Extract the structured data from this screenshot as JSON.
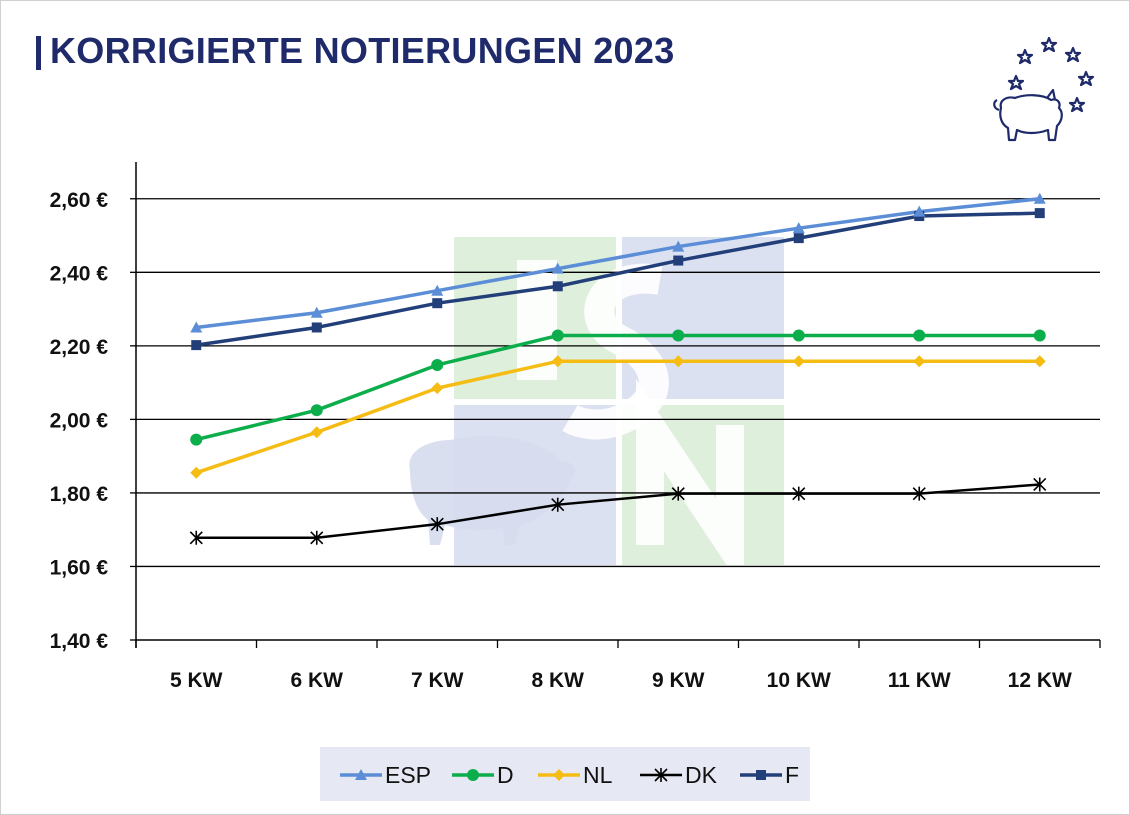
{
  "title": "KORRIGIERTE NOTIERUNGEN 2023",
  "colors": {
    "title": "#1f2a6b",
    "grid": "#000000",
    "watermark_green": "#d8ecd6",
    "watermark_blue": "#d6dcee"
  },
  "logo": {
    "icon": "pig-with-stars-icon"
  },
  "watermark": {
    "icon": "isn-pig-logo-watermark",
    "letters": [
      "I",
      "S",
      "N"
    ]
  },
  "chart_data": {
    "type": "line",
    "categories": [
      "5 KW",
      "6 KW",
      "7 KW",
      "8 KW",
      "9 KW",
      "10 KW",
      "11 KW",
      "12 KW"
    ],
    "yticks": [
      "1,40 €",
      "1,60 €",
      "1,80 €",
      "2,00 €",
      "2,20 €",
      "2,40 €",
      "2,60 €"
    ],
    "ylim": [
      1.4,
      2.7
    ],
    "yticks_values": [
      1.4,
      1.6,
      1.8,
      2.0,
      2.2,
      2.4,
      2.6
    ],
    "grid": true,
    "legend_position": "bottom",
    "series": [
      {
        "name": "ESP",
        "color": "#5b8ed6",
        "marker": "triangle",
        "values": [
          2.25,
          2.29,
          2.35,
          2.41,
          2.47,
          2.52,
          2.565,
          2.6
        ]
      },
      {
        "name": "D",
        "color": "#0cad4b",
        "marker": "circle",
        "values": [
          1.945,
          2.025,
          2.148,
          2.228,
          2.228,
          2.228,
          2.228,
          2.228
        ]
      },
      {
        "name": "NL",
        "color": "#f5bd14",
        "marker": "diamond",
        "values": [
          1.855,
          1.965,
          2.085,
          2.158,
          2.158,
          2.158,
          2.158,
          2.158
        ]
      },
      {
        "name": "DK",
        "color": "#000000",
        "marker": "star",
        "values": [
          1.678,
          1.678,
          1.715,
          1.768,
          1.798,
          1.798,
          1.798,
          1.823
        ]
      },
      {
        "name": "F",
        "color": "#223f7a",
        "marker": "square",
        "values": [
          2.202,
          2.25,
          2.316,
          2.362,
          2.432,
          2.493,
          2.553,
          2.561
        ]
      }
    ]
  }
}
